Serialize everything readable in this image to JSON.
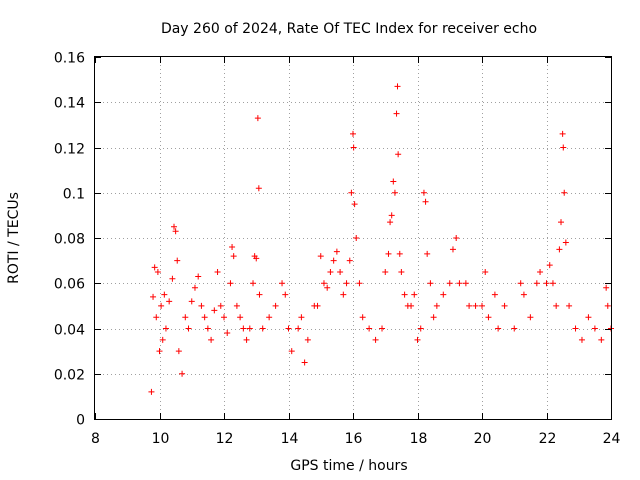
{
  "chart_data": {
    "type": "scatter",
    "title": "Day 260 of 2024, Rate Of TEC Index for receiver echo",
    "xlabel": "GPS time / hours",
    "ylabel": "ROTI / TECUs",
    "xlim": [
      8,
      24
    ],
    "ylim": [
      0,
      0.16
    ],
    "x_ticks": [
      "8",
      "10",
      "12",
      "14",
      "16",
      "18",
      "20",
      "22",
      "24"
    ],
    "y_ticks": [
      "0",
      "0.02",
      "0.04",
      "0.06",
      "0.08",
      "0.1",
      "0.12",
      "0.14",
      "0.16"
    ],
    "x_tick_values": [
      8,
      10,
      12,
      14,
      16,
      18,
      20,
      22,
      24
    ],
    "y_tick_values": [
      0,
      0.02,
      0.04,
      0.06,
      0.08,
      0.1,
      0.12,
      0.14,
      0.16
    ],
    "grid": true,
    "marker": "+",
    "color": "#ff0000",
    "x_range_observed": [
      9.7,
      24.0
    ],
    "series": [
      {
        "values": [
          [
            9.75,
            0.012
          ],
          [
            9.8,
            0.054
          ],
          [
            9.85,
            0.067
          ],
          [
            9.9,
            0.045
          ],
          [
            9.95,
            0.065
          ],
          [
            10.0,
            0.03
          ],
          [
            10.05,
            0.05
          ],
          [
            10.1,
            0.035
          ],
          [
            10.15,
            0.055
          ],
          [
            10.2,
            0.04
          ],
          [
            10.3,
            0.052
          ],
          [
            10.4,
            0.062
          ],
          [
            10.45,
            0.085
          ],
          [
            10.5,
            0.083
          ],
          [
            10.55,
            0.07
          ],
          [
            10.6,
            0.03
          ],
          [
            10.7,
            0.02
          ],
          [
            10.8,
            0.045
          ],
          [
            10.9,
            0.04
          ],
          [
            11.0,
            0.052
          ],
          [
            11.1,
            0.058
          ],
          [
            11.2,
            0.063
          ],
          [
            11.3,
            0.05
          ],
          [
            11.4,
            0.045
          ],
          [
            11.5,
            0.04
          ],
          [
            11.6,
            0.035
          ],
          [
            11.7,
            0.048
          ],
          [
            11.8,
            0.065
          ],
          [
            11.9,
            0.05
          ],
          [
            12.0,
            0.045
          ],
          [
            12.1,
            0.038
          ],
          [
            12.2,
            0.06
          ],
          [
            12.25,
            0.076
          ],
          [
            12.3,
            0.072
          ],
          [
            12.4,
            0.05
          ],
          [
            12.5,
            0.045
          ],
          [
            12.6,
            0.04
          ],
          [
            12.7,
            0.035
          ],
          [
            12.8,
            0.04
          ],
          [
            12.9,
            0.06
          ],
          [
            12.95,
            0.072
          ],
          [
            13.0,
            0.071
          ],
          [
            13.05,
            0.133
          ],
          [
            13.08,
            0.102
          ],
          [
            13.1,
            0.055
          ],
          [
            13.2,
            0.04
          ],
          [
            13.4,
            0.045
          ],
          [
            13.6,
            0.05
          ],
          [
            13.8,
            0.06
          ],
          [
            13.9,
            0.055
          ],
          [
            14.0,
            0.04
          ],
          [
            14.1,
            0.03
          ],
          [
            14.3,
            0.04
          ],
          [
            14.4,
            0.045
          ],
          [
            14.5,
            0.025
          ],
          [
            14.6,
            0.035
          ],
          [
            14.8,
            0.05
          ],
          [
            14.9,
            0.05
          ],
          [
            15.0,
            0.072
          ],
          [
            15.1,
            0.06
          ],
          [
            15.2,
            0.058
          ],
          [
            15.3,
            0.065
          ],
          [
            15.4,
            0.07
          ],
          [
            15.5,
            0.074
          ],
          [
            15.6,
            0.065
          ],
          [
            15.7,
            0.055
          ],
          [
            15.8,
            0.06
          ],
          [
            15.9,
            0.07
          ],
          [
            15.95,
            0.1
          ],
          [
            16.0,
            0.126
          ],
          [
            16.02,
            0.12
          ],
          [
            16.05,
            0.095
          ],
          [
            16.1,
            0.08
          ],
          [
            16.2,
            0.06
          ],
          [
            16.3,
            0.045
          ],
          [
            16.5,
            0.04
          ],
          [
            16.7,
            0.035
          ],
          [
            16.9,
            0.04
          ],
          [
            17.0,
            0.065
          ],
          [
            17.1,
            0.073
          ],
          [
            17.15,
            0.087
          ],
          [
            17.2,
            0.09
          ],
          [
            17.25,
            0.105
          ],
          [
            17.3,
            0.1
          ],
          [
            17.35,
            0.135
          ],
          [
            17.38,
            0.147
          ],
          [
            17.4,
            0.117
          ],
          [
            17.45,
            0.073
          ],
          [
            17.5,
            0.065
          ],
          [
            17.6,
            0.055
          ],
          [
            17.7,
            0.05
          ],
          [
            17.8,
            0.05
          ],
          [
            17.9,
            0.055
          ],
          [
            18.0,
            0.035
          ],
          [
            18.1,
            0.04
          ],
          [
            18.2,
            0.1
          ],
          [
            18.25,
            0.096
          ],
          [
            18.3,
            0.073
          ],
          [
            18.4,
            0.06
          ],
          [
            18.5,
            0.045
          ],
          [
            18.6,
            0.05
          ],
          [
            18.8,
            0.055
          ],
          [
            19.0,
            0.06
          ],
          [
            19.1,
            0.075
          ],
          [
            19.2,
            0.08
          ],
          [
            19.3,
            0.06
          ],
          [
            19.5,
            0.06
          ],
          [
            19.6,
            0.05
          ],
          [
            19.8,
            0.05
          ],
          [
            20.0,
            0.05
          ],
          [
            20.1,
            0.065
          ],
          [
            20.2,
            0.045
          ],
          [
            20.4,
            0.055
          ],
          [
            20.5,
            0.04
          ],
          [
            20.7,
            0.05
          ],
          [
            21.0,
            0.04
          ],
          [
            21.2,
            0.06
          ],
          [
            21.3,
            0.055
          ],
          [
            21.5,
            0.045
          ],
          [
            21.7,
            0.06
          ],
          [
            21.8,
            0.065
          ],
          [
            22.0,
            0.06
          ],
          [
            22.1,
            0.068
          ],
          [
            22.2,
            0.06
          ],
          [
            22.3,
            0.05
          ],
          [
            22.4,
            0.075
          ],
          [
            22.45,
            0.087
          ],
          [
            22.5,
            0.126
          ],
          [
            22.52,
            0.12
          ],
          [
            22.55,
            0.1
          ],
          [
            22.6,
            0.078
          ],
          [
            22.7,
            0.05
          ],
          [
            22.9,
            0.04
          ],
          [
            23.1,
            0.035
          ],
          [
            23.3,
            0.045
          ],
          [
            23.5,
            0.04
          ],
          [
            23.7,
            0.035
          ],
          [
            23.85,
            0.058
          ],
          [
            23.9,
            0.05
          ],
          [
            24.0,
            0.04
          ]
        ]
      }
    ]
  }
}
